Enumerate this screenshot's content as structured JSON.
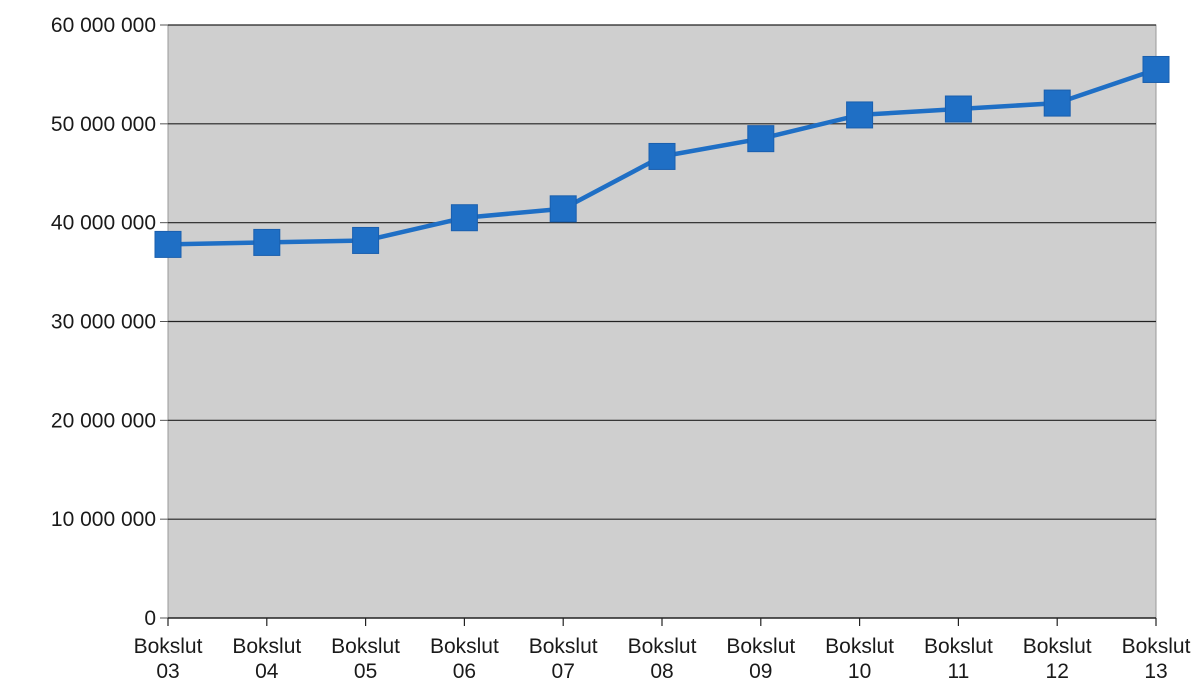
{
  "chart_data": {
    "type": "line",
    "title": "",
    "xlabel": "",
    "ylabel": "",
    "categories": [
      [
        "Bokslut",
        "03"
      ],
      [
        "Bokslut",
        "04"
      ],
      [
        "Bokslut",
        "05"
      ],
      [
        "Bokslut",
        "06"
      ],
      [
        "Bokslut",
        "07"
      ],
      [
        "Bokslut",
        "08"
      ],
      [
        "Bokslut",
        "09"
      ],
      [
        "Bokslut",
        "10"
      ],
      [
        "Bokslut",
        "11"
      ],
      [
        "Bokslut",
        "12"
      ],
      [
        "Bokslut",
        "13"
      ]
    ],
    "series": [
      {
        "color": "#1f6fc5",
        "marker": "square",
        "values": [
          37800000,
          38000000,
          38200000,
          40500000,
          41400000,
          46700000,
          48500000,
          50900000,
          51500000,
          52100000,
          55500000
        ]
      }
    ],
    "y_ticks": [
      0,
      10000000,
      20000000,
      30000000,
      40000000,
      50000000,
      60000000
    ],
    "y_tick_labels": [
      "0",
      "10 000 000",
      "20 000 000",
      "30 000 000",
      "40 000 000",
      "50 000 000",
      "60 000 000"
    ],
    "ylim": [
      0,
      60000000
    ],
    "grid": true,
    "plot_background": "#cfcfcf",
    "gridline_color": "#222222",
    "legend": "none"
  }
}
